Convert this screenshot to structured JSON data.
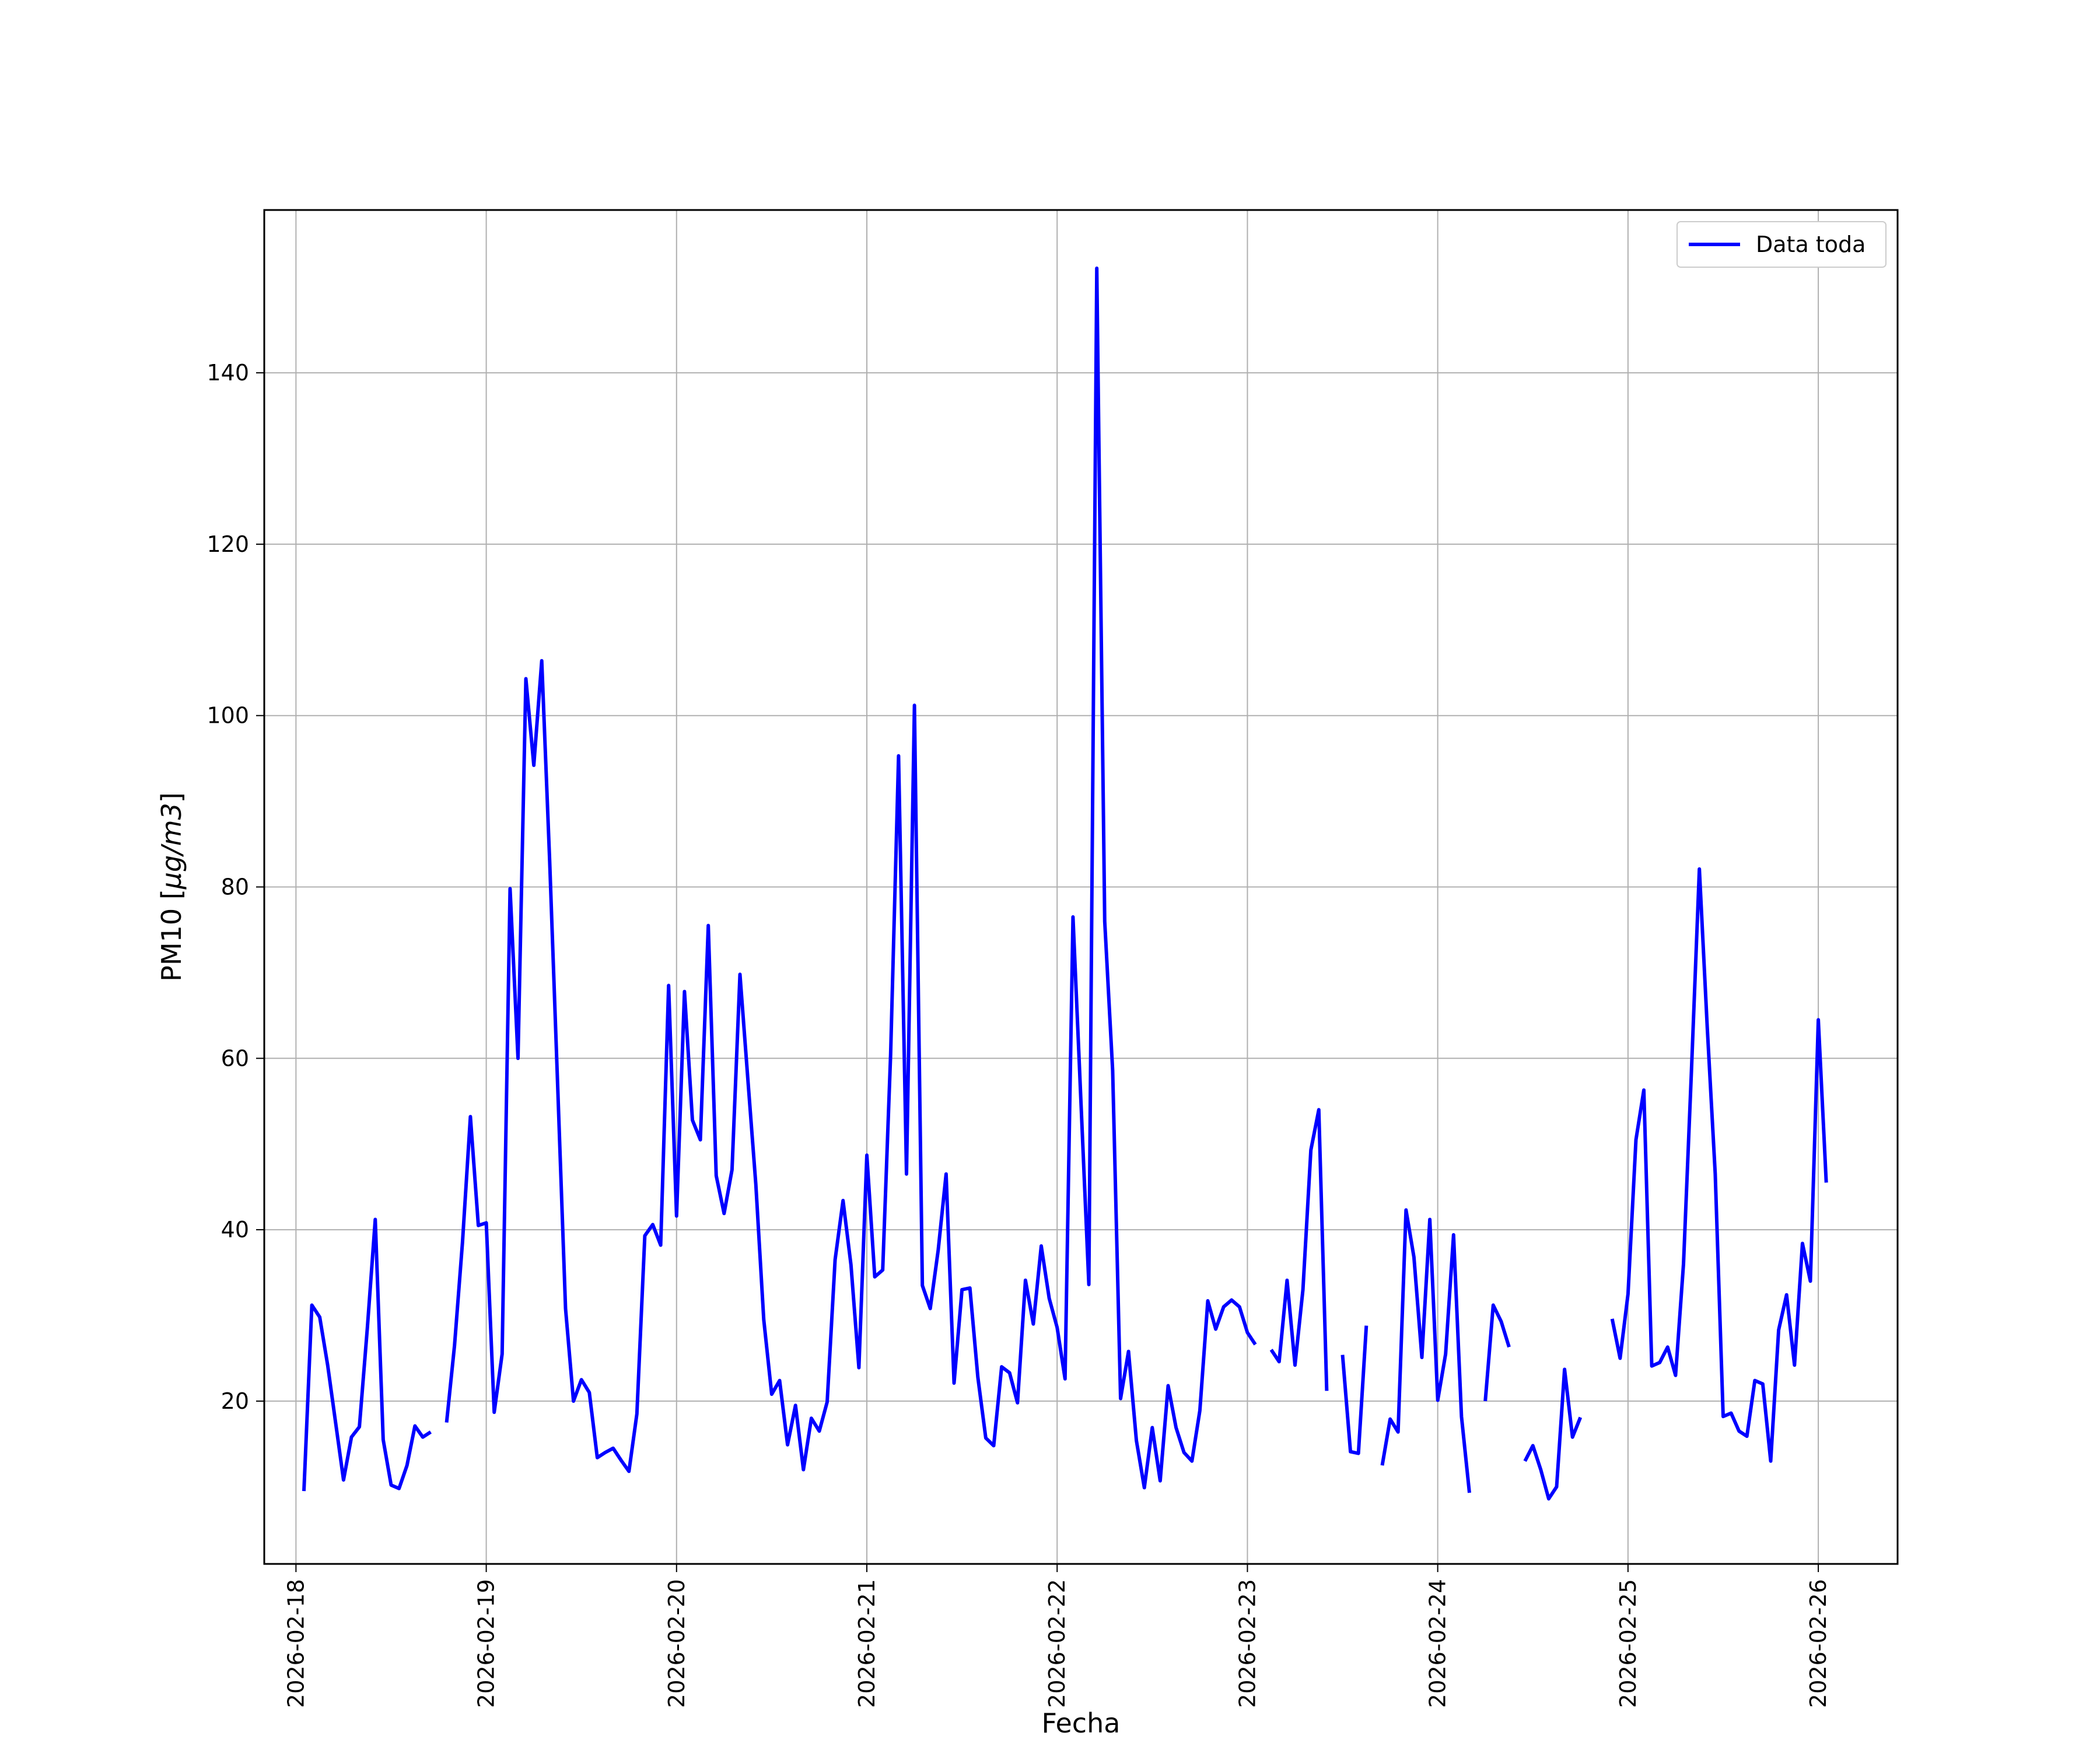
{
  "chart_data": {
    "type": "line",
    "title": "",
    "xlabel": "Fecha",
    "ylabel": "PM10 [μg/m3]",
    "ylabel_parts": {
      "text": "PM10 [",
      "math": "μg/m3",
      "close": "]"
    },
    "xlim": [
      "2026-02-17T20:00",
      "2026-02-26T10:00"
    ],
    "ylim": [
      1,
      159
    ],
    "x_ticks": [
      "2026-02-18",
      "2026-02-19",
      "2026-02-20",
      "2026-02-21",
      "2026-02-22",
      "2026-02-23",
      "2026-02-24",
      "2026-02-25",
      "2026-02-26"
    ],
    "y_ticks": [
      20,
      40,
      60,
      80,
      100,
      120,
      140
    ],
    "grid": true,
    "legend_position": "upper right",
    "series": [
      {
        "name": "Data toda",
        "color": "#0000ff",
        "x_start": "2026-02-18T01:00",
        "x_step_hours": 1,
        "values": [
          9.5,
          31.2,
          29.8,
          24.2,
          17.5,
          10.8,
          15.8,
          17.0,
          28.5,
          41.2,
          15.5,
          10.2,
          9.8,
          12.5,
          17.1,
          15.8,
          16.4,
          null,
          17.5,
          26.5,
          38.5,
          53.2,
          40.5,
          40.8,
          18.7,
          25.5,
          79.8,
          60.0,
          104.3,
          94.2,
          106.4,
          83.0,
          57.0,
          30.8,
          20.0,
          22.5,
          21.0,
          13.4,
          14.0,
          14.5,
          13.1,
          11.8,
          18.5,
          39.3,
          40.6,
          38.2,
          68.5,
          41.6,
          67.8,
          52.8,
          50.5,
          75.5,
          46.3,
          41.9,
          47.0,
          69.8,
          57.5,
          45.3,
          29.5,
          20.8,
          22.4,
          14.9,
          19.5,
          12.0,
          18.0,
          16.5,
          19.9,
          36.5,
          43.4,
          35.9,
          23.9,
          48.7,
          34.5,
          35.3,
          60.5,
          95.3,
          46.5,
          101.2,
          33.5,
          30.8,
          37.6,
          46.5,
          22.1,
          33.0,
          33.2,
          22.8,
          15.7,
          14.8,
          24.0,
          23.3,
          19.8,
          34.1,
          29.0,
          38.1,
          32.0,
          28.6,
          22.6,
          76.5,
          55.0,
          33.6,
          152.2,
          76.0,
          58.6,
          20.3,
          25.8,
          15.4,
          9.9,
          16.9,
          10.7,
          21.8,
          16.9,
          14.0,
          13.0,
          18.9,
          31.7,
          28.4,
          31.0,
          31.8,
          31.0,
          28.0,
          26.6,
          null,
          26.0,
          24.6,
          34.1,
          24.2,
          33.0,
          49.3,
          54.0,
          21.2,
          null,
          25.4,
          14.1,
          13.9,
          28.8,
          null,
          12.5,
          17.9,
          16.4,
          42.3,
          36.8,
          25.1,
          41.2,
          20.1,
          25.5,
          39.4,
          18.2,
          9.3,
          null,
          20.0,
          31.2,
          29.3,
          26.3,
          null,
          13.0,
          14.8,
          12.0,
          8.6,
          10.0,
          23.7,
          15.8,
          18.1,
          null,
          null,
          null,
          29.6,
          25.0,
          32.5,
          50.5,
          56.3,
          24.1,
          24.5,
          26.3,
          23.0,
          36.0,
          58.5,
          82.1,
          63.5,
          46.5,
          18.2,
          18.6,
          16.5,
          15.9,
          22.4,
          22.0,
          13.0,
          28.3,
          32.4,
          24.2,
          38.4,
          34.0,
          64.5,
          45.5
        ]
      }
    ]
  }
}
